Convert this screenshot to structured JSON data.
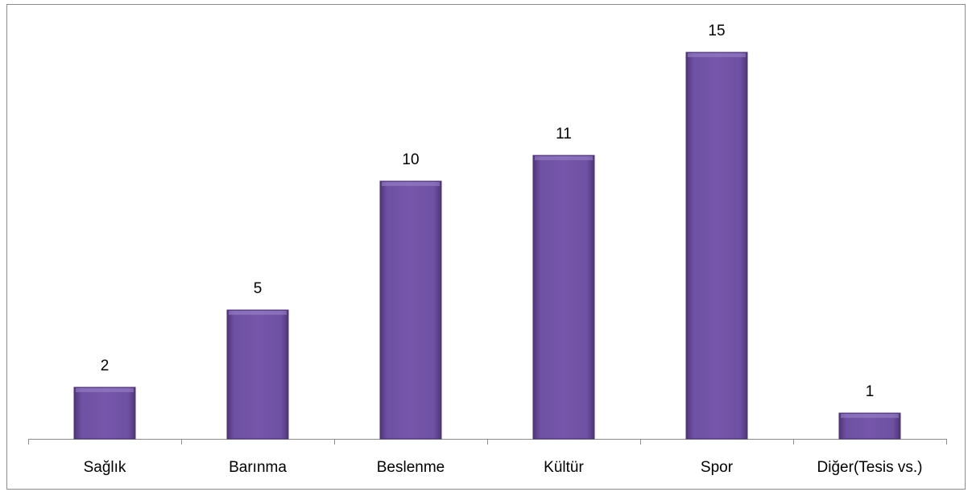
{
  "chart_data": {
    "type": "bar",
    "categories": [
      "Sağlık",
      "Barınma",
      "Beslenme",
      "Kültür",
      "Spor",
      "Diğer(Tesis vs.)"
    ],
    "values": [
      2,
      5,
      10,
      11,
      15,
      1
    ],
    "color": "#6b4c9e",
    "ylim": [
      0,
      16
    ]
  }
}
